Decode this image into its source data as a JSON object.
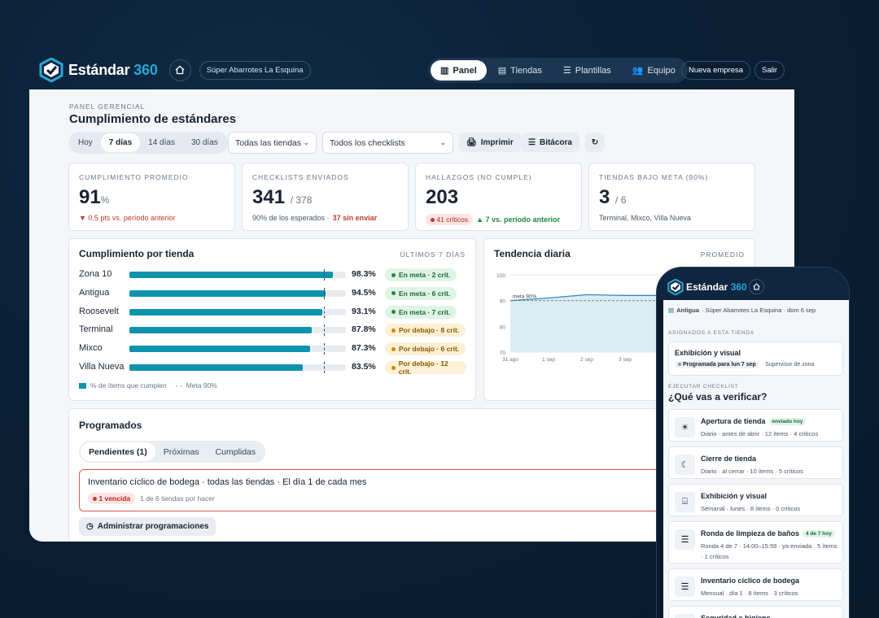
{
  "brand": {
    "name_main": "Estándar",
    "name_accent": "360"
  },
  "header": {
    "store": "Súper Abarrotes La Esquina",
    "tabs": [
      {
        "label": "Panel",
        "icon": "bar-chart-icon"
      },
      {
        "label": "Tiendas",
        "icon": "store-icon"
      },
      {
        "label": "Plantillas",
        "icon": "list-icon"
      },
      {
        "label": "Equipo",
        "icon": "users-icon"
      }
    ],
    "new_company": "Nueva empresa",
    "logout": "Salir"
  },
  "page": {
    "eyebrow": "PANEL GERENCIAL",
    "title": "Cumplimiento de estándares",
    "ranges": [
      "Hoy",
      "7 días",
      "14 días",
      "30 días"
    ],
    "store_filter": "Todas las tiendas",
    "checklist_filter": "Todos los checklists",
    "print": "Imprimir",
    "log": "Bitácora",
    "refresh": "↻"
  },
  "kpis": {
    "avg": {
      "label": "CUMPLIMIENTO PROMEDIO",
      "value": "91",
      "unit": "%",
      "delta": "▼ 0.5 pts vs. período anterior"
    },
    "sent": {
      "label": "CHECKLISTS ENVIADOS",
      "value": "341",
      "total": "/ 378",
      "sub": "90% de los esperados ·",
      "missing": "37 sin enviar"
    },
    "findings": {
      "label": "HALLAZGOS (NO CUMPLE)",
      "value": "203",
      "critical": "41 críticos",
      "delta": "▲ 7 vs. período anterior"
    },
    "below": {
      "label": "TIENDAS BAJO META (90%)",
      "value": "3",
      "total": "/ 6",
      "stores": "Terminal, Mixco, Villa Nueva"
    }
  },
  "stores_chart": {
    "title": "Cumplimiento por tienda",
    "range": "ÚLTIMOS 7 DÍAS",
    "rows": [
      {
        "name": "Zona 10",
        "value": 98.3,
        "pct": "98.3%",
        "status": "ok",
        "badge": "En meta · 2 crít."
      },
      {
        "name": "Antigua",
        "value": 94.5,
        "pct": "94.5%",
        "status": "ok",
        "badge": "En meta · 6 crít."
      },
      {
        "name": "Roosevelt",
        "value": 93.1,
        "pct": "93.1%",
        "status": "ok",
        "badge": "En meta · 7 crít."
      },
      {
        "name": "Terminal",
        "value": 87.8,
        "pct": "87.8%",
        "status": "low",
        "badge": "Por debajo · 8 crít."
      },
      {
        "name": "Mixco",
        "value": 87.3,
        "pct": "87.3%",
        "status": "low",
        "badge": "Por debajo · 6 crít."
      },
      {
        "name": "Villa Nueva",
        "value": 83.5,
        "pct": "83.5%",
        "status": "low",
        "badge": "Por debajo · 12 crít."
      }
    ],
    "legend_bar": "% de ítems que cumplen",
    "legend_meta": "Meta 90%",
    "meta": 90
  },
  "chart_data": {
    "type": "area",
    "title": "Tendencia diaria",
    "subtitle": "PROMEDIO",
    "x": [
      "31 ago",
      "1 sep",
      "2 sep",
      "3 sep"
    ],
    "series": [
      {
        "values": [
          90,
          91,
          92.3,
          92
        ]
      }
    ],
    "ylim": [
      70,
      100
    ],
    "yticks": [
      "100",
      "90",
      "80",
      "70"
    ],
    "meta_label": "meta 90%",
    "meta": 90
  },
  "scheduled": {
    "title": "Programados",
    "tabs": [
      "Pendientes (1)",
      "Próximas",
      "Cumplidas"
    ],
    "item": {
      "title": "Inventario cíclico de bodega · todas las tiendas · El día 1 de cada mes",
      "overdue": "1 vencida",
      "progress": "1 de 6 tiendas por hacer"
    },
    "manage": "Administrar programaciones"
  },
  "phone": {
    "store_line_bold": "Antigua",
    "store_line": "· Súper Abarrotes La Esquina · dom 6 sep",
    "assigned_label": "ASIGNADOS A ESTA TIENDA",
    "assigned": {
      "title": "Exhibición y visual",
      "scheduled": "Programada para lun 7 sep",
      "by": "· Supervisor de zona"
    },
    "exec_label": "EJECUTAR CHECKLIST",
    "question": "¿Qué vas a verificar?",
    "checklists": [
      {
        "title": "Apertura de tienda",
        "tag": "enviado hoy",
        "sub": "Diario · antes de abrir · 12 ítems · 4 críticos",
        "icon": "sun-icon"
      },
      {
        "title": "Cierre de tienda",
        "tag": "",
        "sub": "Diario · al cerrar · 10 ítems · 5 críticos",
        "icon": "moon-icon"
      },
      {
        "title": "Exhibición y visual",
        "tag": "",
        "sub": "Semanal · lunes · 8 ítems · 0 críticos",
        "icon": "shelf-icon"
      },
      {
        "title": "Ronda de limpieza de baños",
        "tag": "4 de 7 hoy",
        "sub": "Ronda 4 de 7 · 14:00–15:59 · ya enviada · 5 ítems · 1 críticos",
        "icon": "list-icon"
      },
      {
        "title": "Inventario cíclico de bodega",
        "tag": "",
        "sub": "Mensual · día 1 · 8 ítems · 3 críticos",
        "icon": "list-icon"
      },
      {
        "title": "Seguridad e higiene",
        "tag": "",
        "sub": "",
        "icon": "list-icon"
      }
    ]
  },
  "colors": {
    "accent": "#2aa7d6",
    "bar": "#0e93ad",
    "bg": "#0a2036"
  }
}
